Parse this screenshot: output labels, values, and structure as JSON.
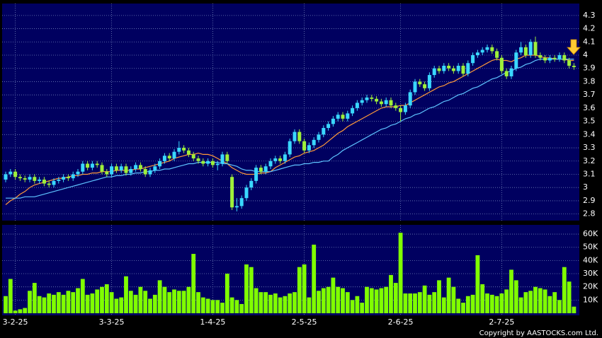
{
  "chart_data": [
    {
      "type": "candlestick",
      "open": [
        3.06,
        3.1,
        3.12,
        3.08,
        3.07,
        3.06,
        3.08,
        3.05,
        3.06,
        3.03,
        3.02,
        3.05,
        3.06,
        3.08,
        3.07,
        3.1,
        3.12,
        3.18,
        3.15,
        3.18,
        3.17,
        3.12,
        3.1,
        3.16,
        3.13,
        3.16,
        3.11,
        3.14,
        3.17,
        3.14,
        3.1,
        3.13,
        3.16,
        3.2,
        3.24,
        3.22,
        3.27,
        3.3,
        3.28,
        3.25,
        3.22,
        3.2,
        3.18,
        3.2,
        3.17,
        3.18,
        3.25,
        3.08,
        2.85,
        2.86,
        2.92,
        3.0,
        3.05,
        3.15,
        3.12,
        3.16,
        3.2,
        3.22,
        3.2,
        3.25,
        3.35,
        3.42,
        3.35,
        3.28,
        3.32,
        3.36,
        3.4,
        3.45,
        3.48,
        3.52,
        3.55,
        3.52,
        3.56,
        3.6,
        3.64,
        3.66,
        3.68,
        3.67,
        3.65,
        3.63,
        3.66,
        3.62,
        3.6,
        3.57,
        3.62,
        3.72,
        3.8,
        3.78,
        3.75,
        3.85,
        3.9,
        3.88,
        3.92,
        3.9,
        3.88,
        3.92,
        3.86,
        3.94,
        4.0,
        4.02,
        4.04,
        4.06,
        4.03,
        3.98,
        3.88,
        3.84,
        3.9,
        4.02,
        4.06,
        4.0,
        4.1,
        4.0,
        3.98,
        3.96,
        3.98,
        3.97,
        4.0,
        3.96,
        3.92
      ],
      "high": [
        3.12,
        3.14,
        3.14,
        3.1,
        3.09,
        3.1,
        3.1,
        3.08,
        3.08,
        3.05,
        3.07,
        3.08,
        3.1,
        3.1,
        3.12,
        3.14,
        3.2,
        3.2,
        3.2,
        3.2,
        3.19,
        3.14,
        3.18,
        3.18,
        3.18,
        3.18,
        3.16,
        3.19,
        3.19,
        3.16,
        3.15,
        3.18,
        3.22,
        3.26,
        3.26,
        3.29,
        3.35,
        3.32,
        3.3,
        3.27,
        3.24,
        3.22,
        3.22,
        3.22,
        3.2,
        3.27,
        3.27,
        3.1,
        2.92,
        2.94,
        3.02,
        3.07,
        3.17,
        3.17,
        3.18,
        3.22,
        3.24,
        3.24,
        3.27,
        3.37,
        3.44,
        3.44,
        3.37,
        3.34,
        3.38,
        3.42,
        3.47,
        3.5,
        3.54,
        3.57,
        3.57,
        3.58,
        3.62,
        3.66,
        3.68,
        3.7,
        3.7,
        3.69,
        3.67,
        3.68,
        3.68,
        3.64,
        3.62,
        3.64,
        3.74,
        3.82,
        3.82,
        3.8,
        3.87,
        3.92,
        3.92,
        3.94,
        3.94,
        3.92,
        3.94,
        3.94,
        3.96,
        4.02,
        4.04,
        4.06,
        4.08,
        4.08,
        4.05,
        4.0,
        3.9,
        3.92,
        4.04,
        4.1,
        4.08,
        4.12,
        4.14,
        4.02,
        4.0,
        4.0,
        4.0,
        4.02,
        4.02,
        3.98,
        3.94
      ],
      "low": [
        3.04,
        3.08,
        3.06,
        3.05,
        3.04,
        3.04,
        3.03,
        3.03,
        3.01,
        3.0,
        3.0,
        3.03,
        3.04,
        3.05,
        3.05,
        3.08,
        3.1,
        3.13,
        3.13,
        3.15,
        3.1,
        3.08,
        3.08,
        3.11,
        3.11,
        3.09,
        3.09,
        3.12,
        3.12,
        3.08,
        3.08,
        3.11,
        3.14,
        3.18,
        3.2,
        3.2,
        3.25,
        3.26,
        3.23,
        3.2,
        3.18,
        3.16,
        3.16,
        3.15,
        3.13,
        3.16,
        3.18,
        2.83,
        2.82,
        2.84,
        2.9,
        2.98,
        3.03,
        3.1,
        3.1,
        3.14,
        3.18,
        3.18,
        3.18,
        3.23,
        3.33,
        3.33,
        3.26,
        3.26,
        3.3,
        3.34,
        3.38,
        3.43,
        3.46,
        3.5,
        3.5,
        3.5,
        3.54,
        3.58,
        3.62,
        3.64,
        3.65,
        3.63,
        3.61,
        3.61,
        3.6,
        3.58,
        3.5,
        3.55,
        3.6,
        3.7,
        3.76,
        3.73,
        3.73,
        3.83,
        3.86,
        3.86,
        3.88,
        3.86,
        3.86,
        3.84,
        3.84,
        3.92,
        3.98,
        4.0,
        4.02,
        4.01,
        3.96,
        3.86,
        3.82,
        3.82,
        3.88,
        4.0,
        3.98,
        3.98,
        3.98,
        3.96,
        3.94,
        3.94,
        3.95,
        3.95,
        3.94,
        3.9,
        3.89
      ],
      "close": [
        3.1,
        3.12,
        3.08,
        3.07,
        3.06,
        3.08,
        3.05,
        3.06,
        3.03,
        3.02,
        3.05,
        3.06,
        3.08,
        3.07,
        3.1,
        3.12,
        3.18,
        3.15,
        3.18,
        3.17,
        3.12,
        3.1,
        3.16,
        3.13,
        3.16,
        3.11,
        3.14,
        3.17,
        3.14,
        3.1,
        3.13,
        3.16,
        3.2,
        3.24,
        3.22,
        3.27,
        3.3,
        3.28,
        3.25,
        3.22,
        3.2,
        3.18,
        3.2,
        3.17,
        3.18,
        3.25,
        3.2,
        2.85,
        2.86,
        2.92,
        3.0,
        3.05,
        3.15,
        3.12,
        3.16,
        3.2,
        3.22,
        3.2,
        3.25,
        3.35,
        3.42,
        3.35,
        3.28,
        3.32,
        3.36,
        3.4,
        3.45,
        3.48,
        3.52,
        3.55,
        3.52,
        3.56,
        3.6,
        3.64,
        3.66,
        3.68,
        3.67,
        3.65,
        3.63,
        3.66,
        3.62,
        3.6,
        3.57,
        3.62,
        3.72,
        3.8,
        3.78,
        3.75,
        3.85,
        3.9,
        3.88,
        3.92,
        3.9,
        3.88,
        3.92,
        3.86,
        3.94,
        4.0,
        4.02,
        4.04,
        4.06,
        4.03,
        3.98,
        3.88,
        3.84,
        3.9,
        4.02,
        4.06,
        4.0,
        4.1,
        4.0,
        3.98,
        3.96,
        3.98,
        3.97,
        4.0,
        3.96,
        3.92,
        3.91
      ],
      "up_color": "#3ad8ff",
      "down_color": "#9ef03a",
      "series": [
        {
          "color": "#ff9a3a",
          "values": [
            2.87,
            2.9,
            2.92,
            2.95,
            2.97,
            3.0,
            3.02,
            3.03,
            3.04,
            3.05,
            3.06,
            3.07,
            3.07,
            3.08,
            3.09,
            3.09,
            3.1,
            3.1,
            3.11,
            3.11,
            3.12,
            3.12,
            3.12,
            3.13,
            3.13,
            3.13,
            3.13,
            3.14,
            3.14,
            3.15,
            3.16,
            3.17,
            3.18,
            3.19,
            3.2,
            3.22,
            3.23,
            3.24,
            3.25,
            3.25,
            3.26,
            3.25,
            3.25,
            3.24,
            3.22,
            3.2,
            3.18,
            3.15,
            3.13,
            3.11,
            3.1,
            3.1,
            3.1,
            3.11,
            3.11,
            3.12,
            3.15,
            3.17,
            3.19,
            3.21,
            3.23,
            3.24,
            3.26,
            3.27,
            3.28,
            3.3,
            3.32,
            3.35,
            3.38,
            3.41,
            3.43,
            3.46,
            3.48,
            3.5,
            3.52,
            3.54,
            3.56,
            3.58,
            3.6,
            3.61,
            3.61,
            3.61,
            3.62,
            3.62,
            3.64,
            3.66,
            3.68,
            3.7,
            3.72,
            3.74,
            3.76,
            3.77,
            3.79,
            3.8,
            3.82,
            3.84,
            3.86,
            3.88,
            3.9,
            3.92,
            3.94,
            3.96,
            3.97,
            3.96,
            3.96,
            3.95,
            3.97,
            3.98,
            4.0,
            4.0,
            4.0,
            3.99,
            3.98,
            3.98,
            3.97,
            3.97,
            3.97,
            3.96,
            3.96
          ]
        },
        {
          "color": "#5ec4ff",
          "values": [
            2.92,
            2.92,
            2.92,
            2.92,
            2.93,
            2.93,
            2.93,
            2.94,
            2.95,
            2.96,
            2.97,
            2.98,
            2.99,
            3.0,
            3.01,
            3.02,
            3.03,
            3.04,
            3.05,
            3.06,
            3.07,
            3.08,
            3.08,
            3.09,
            3.09,
            3.1,
            3.1,
            3.11,
            3.11,
            3.12,
            3.12,
            3.13,
            3.13,
            3.14,
            3.14,
            3.15,
            3.16,
            3.17,
            3.18,
            3.18,
            3.19,
            3.19,
            3.19,
            3.19,
            3.19,
            3.18,
            3.18,
            3.17,
            3.16,
            3.14,
            3.13,
            3.13,
            3.12,
            3.12,
            3.12,
            3.12,
            3.13,
            3.14,
            3.15,
            3.16,
            3.17,
            3.17,
            3.18,
            3.18,
            3.19,
            3.19,
            3.2,
            3.2,
            3.23,
            3.25,
            3.28,
            3.3,
            3.32,
            3.34,
            3.36,
            3.38,
            3.4,
            3.42,
            3.44,
            3.45,
            3.47,
            3.48,
            3.5,
            3.52,
            3.53,
            3.55,
            3.56,
            3.58,
            3.6,
            3.61,
            3.63,
            3.65,
            3.66,
            3.68,
            3.7,
            3.71,
            3.73,
            3.75,
            3.76,
            3.78,
            3.8,
            3.82,
            3.83,
            3.85,
            3.87,
            3.88,
            3.9,
            3.91,
            3.93,
            3.94,
            3.96,
            3.97,
            3.97,
            3.97,
            3.97,
            3.97,
            3.97,
            3.97,
            3.97
          ]
        }
      ],
      "ylim": [
        2.75,
        4.39
      ],
      "yticks": [
        2.8,
        2.9,
        3,
        3.1,
        3.2,
        3.3,
        3.4,
        3.5,
        3.6,
        3.7,
        3.8,
        3.9,
        4,
        4.1,
        4.2,
        4.3
      ],
      "grid": true
    },
    {
      "type": "bar",
      "categories": [
        null,
        null,
        "3-2-25",
        null,
        null,
        null,
        null,
        null,
        null,
        null,
        null,
        null,
        null,
        null,
        null,
        null,
        null,
        null,
        null,
        null,
        null,
        null,
        "3-3-25",
        null,
        null,
        null,
        null,
        null,
        null,
        null,
        null,
        null,
        null,
        null,
        null,
        null,
        null,
        null,
        null,
        null,
        null,
        null,
        null,
        "1-4-25",
        null,
        null,
        null,
        null,
        null,
        null,
        null,
        null,
        null,
        null,
        null,
        null,
        null,
        null,
        null,
        null,
        null,
        null,
        "2-5-25",
        null,
        null,
        null,
        null,
        null,
        null,
        null,
        null,
        null,
        null,
        null,
        null,
        null,
        null,
        null,
        null,
        null,
        null,
        null,
        "2-6-25",
        null,
        null,
        null,
        null,
        null,
        null,
        null,
        null,
        null,
        null,
        null,
        null,
        null,
        null,
        null,
        null,
        null,
        null,
        null,
        null,
        "2-7-25",
        null,
        null,
        null,
        null,
        null,
        null,
        null,
        null,
        null,
        null,
        null,
        null,
        null,
        null,
        null
      ],
      "values": [
        13000,
        26000,
        2000,
        3000,
        4000,
        17000,
        23000,
        13000,
        12000,
        15000,
        14000,
        16000,
        14000,
        17000,
        16000,
        19000,
        26000,
        14000,
        15000,
        18000,
        20000,
        22000,
        16000,
        11000,
        12000,
        28000,
        17000,
        14000,
        20000,
        17000,
        11000,
        14000,
        25000,
        20000,
        16000,
        18000,
        17000,
        17000,
        20000,
        45000,
        16000,
        12000,
        11000,
        10000,
        10000,
        8000,
        30000,
        12000,
        10000,
        7000,
        37000,
        35000,
        19000,
        16000,
        16000,
        14000,
        15000,
        12000,
        13000,
        15000,
        16000,
        35000,
        37000,
        12000,
        52000,
        17000,
        19000,
        20000,
        27000,
        20000,
        19000,
        16000,
        10000,
        13000,
        8000,
        20000,
        19000,
        18000,
        19000,
        20000,
        29000,
        23000,
        61000,
        15000,
        15000,
        15000,
        16000,
        21000,
        14000,
        16000,
        25000,
        12000,
        27000,
        20000,
        11000,
        8000,
        13000,
        14000,
        44000,
        22000,
        15000,
        14000,
        13000,
        15000,
        18000,
        33000,
        25000,
        12000,
        16000,
        17000,
        20000,
        19000,
        18000,
        13000,
        16000,
        10000,
        35000,
        24000,
        5000
      ],
      "color": "#80ff00",
      "ylim": [
        0,
        67000
      ],
      "yticks": [
        {
          "value": 10000,
          "label": "10K"
        },
        {
          "value": 20000,
          "label": "20K"
        },
        {
          "value": 30000,
          "label": "30K"
        },
        {
          "value": 40000,
          "label": "40K"
        },
        {
          "value": 50000,
          "label": "50K"
        },
        {
          "value": 60000,
          "label": "60K"
        }
      ],
      "grid": true,
      "source": "Copyright by AASTOCKS.com Ltd."
    }
  ]
}
